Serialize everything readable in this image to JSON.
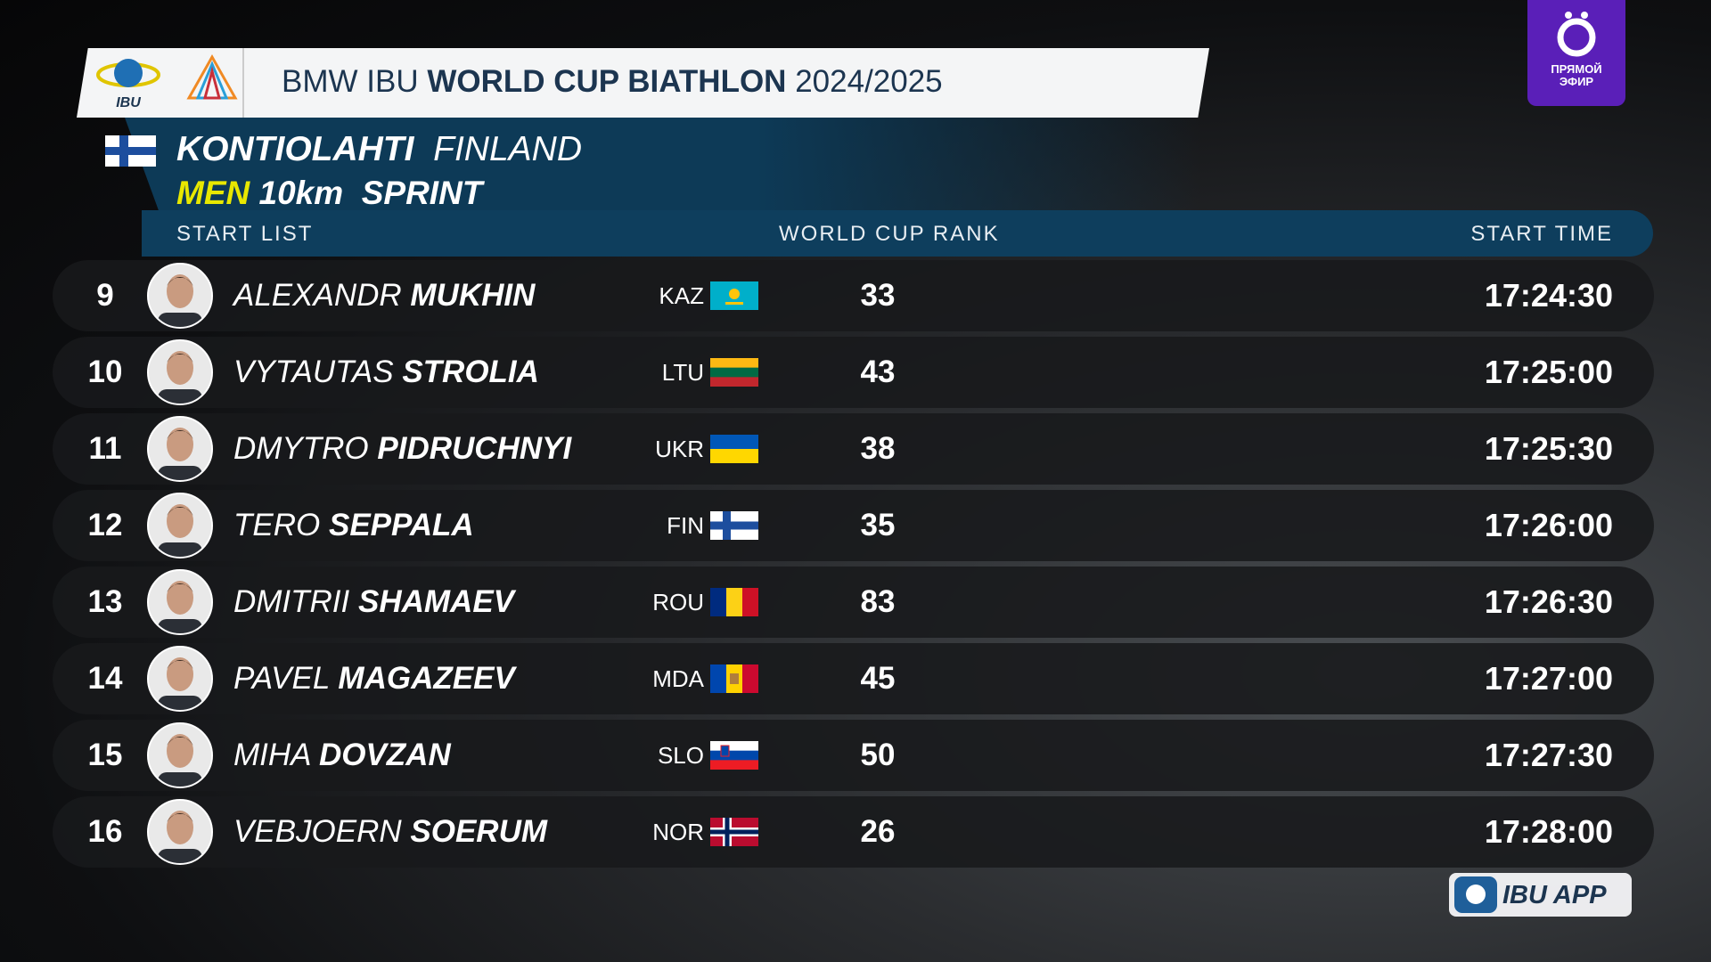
{
  "header": {
    "title_prefix": "BMW IBU",
    "title_bold": "WORLD CUP BIATHLON",
    "title_season": "2024/2025",
    "logo_text": "IBU"
  },
  "badge": {
    "line1": "ПРЯМОЙ",
    "line2": "ЭФИР"
  },
  "event": {
    "venue": "KONTIOLAHTI",
    "country": "FINLAND",
    "gender": "MEN",
    "distance": "10km",
    "discipline": "SPRINT"
  },
  "table": {
    "columns": [
      "START LIST",
      "WORLD CUP RANK",
      "START TIME"
    ],
    "rows": [
      {
        "bib": 9,
        "first_name": "ALEXANDR",
        "last_name": "MUKHIN",
        "nation": "KAZ",
        "rank": 33,
        "start_time": "17:24:30"
      },
      {
        "bib": 10,
        "first_name": "VYTAUTAS",
        "last_name": "STROLIA",
        "nation": "LTU",
        "rank": 43,
        "start_time": "17:25:00"
      },
      {
        "bib": 11,
        "first_name": "DMYTRO",
        "last_name": "PIDRUCHNYI",
        "nation": "UKR",
        "rank": 38,
        "start_time": "17:25:30"
      },
      {
        "bib": 12,
        "first_name": "TERO",
        "last_name": "SEPPALA",
        "nation": "FIN",
        "rank": 35,
        "start_time": "17:26:00"
      },
      {
        "bib": 13,
        "first_name": "DMITRII",
        "last_name": "SHAMAEV",
        "nation": "ROU",
        "rank": 83,
        "start_time": "17:26:30"
      },
      {
        "bib": 14,
        "first_name": "PAVEL",
        "last_name": "MAGAZEEV",
        "nation": "MDA",
        "rank": 45,
        "start_time": "17:27:00"
      },
      {
        "bib": 15,
        "first_name": "MIHA",
        "last_name": "DOVZAN",
        "nation": "SLO",
        "rank": 50,
        "start_time": "17:27:30"
      },
      {
        "bib": 16,
        "first_name": "VEBJOERN",
        "last_name": "SOERUM",
        "nation": "NOR",
        "rank": 26,
        "start_time": "17:28:00"
      }
    ]
  },
  "footer": {
    "app": "IBU APP"
  }
}
